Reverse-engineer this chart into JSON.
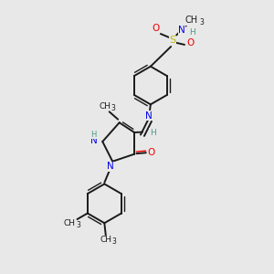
{
  "bg_color": "#e8e8e8",
  "bond_color": "#1a1a1a",
  "N_color": "#0000ee",
  "O_color": "#ee0000",
  "S_color": "#bbbb00",
  "H_color": "#4a9a8a",
  "figsize": [
    3.0,
    3.0
  ],
  "dpi": 100,
  "xlim": [
    0,
    10
  ],
  "ylim": [
    0,
    10
  ]
}
